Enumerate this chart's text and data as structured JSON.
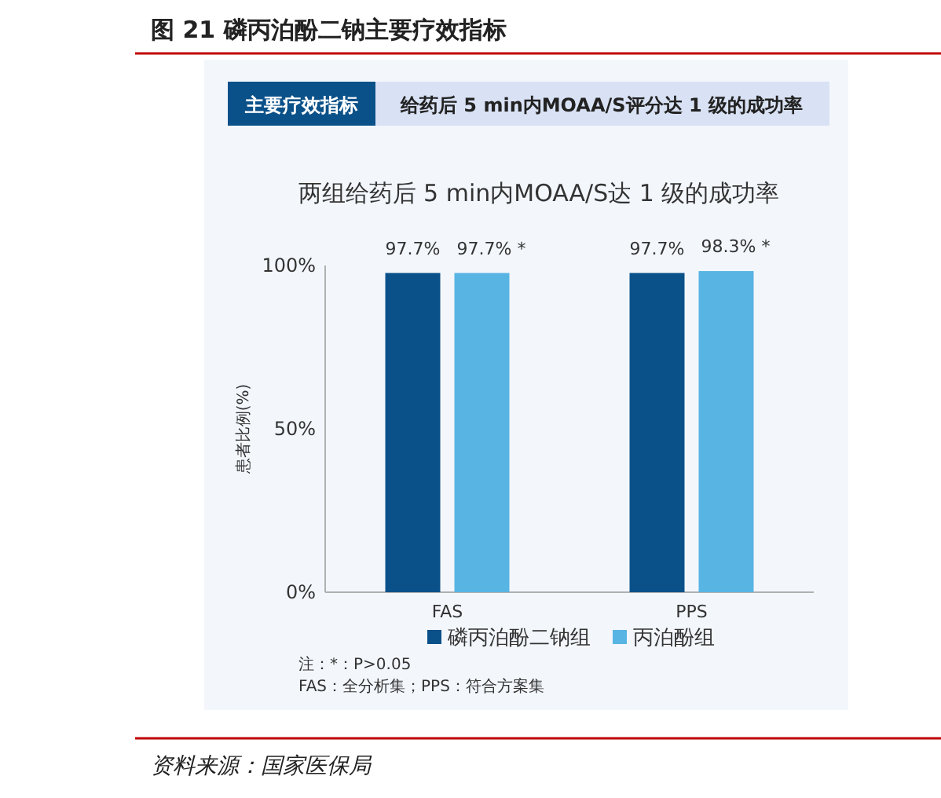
{
  "chart_data": {
    "type": "bar",
    "title": "图 21 磷丙泊酚二钠主要疗效指标",
    "subtitle": "两组给药后 5 min内MOAA/S达 1 级的成功率",
    "ylabel": "患者比例(%)",
    "categories": [
      "FAS",
      "PPS"
    ],
    "series": [
      {
        "name": "磷丙泊酚二钠组",
        "color": "#0b5189",
        "values": [
          97.7,
          97.7
        ],
        "value_labels": [
          "97.7%",
          "97.7%"
        ]
      },
      {
        "name": "丙泊酚组",
        "color": "#58b4e3",
        "values": [
          97.7,
          98.3
        ],
        "value_labels": [
          "97.7% *",
          "98.3% *"
        ]
      }
    ],
    "ylim": [
      0,
      100
    ],
    "yticks": [
      {
        "value": 0,
        "label": "0%"
      },
      {
        "value": 50,
        "label": "50%"
      },
      {
        "value": 100,
        "label": "100%"
      }
    ],
    "legend": "bottom",
    "annotations": [
      "主要疗效指标",
      "给药后 5 min内MOAA/S评分达 1 级的成功率",
      "注：*：P>0.05",
      "FAS：全分析集；PPS：符合方案集",
      "资料来源：国家医保局"
    ]
  }
}
